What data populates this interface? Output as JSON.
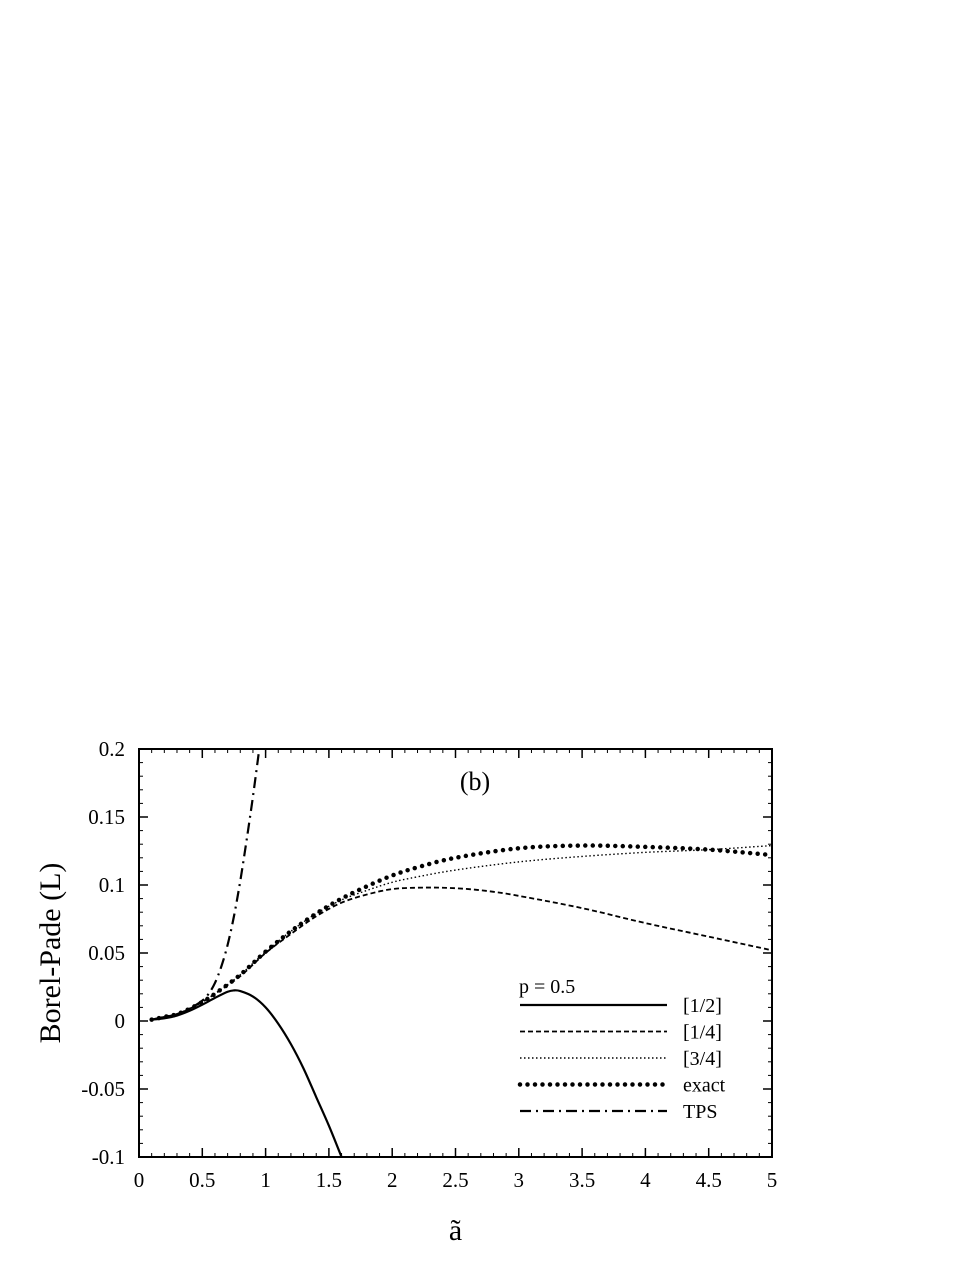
{
  "chart_data": {
    "type": "line",
    "title": "",
    "panel_label": "(b)",
    "xlabel": "ã",
    "ylabel": "Borel-Pade (L)",
    "xlim": [
      0,
      5
    ],
    "ylim": [
      -0.1,
      0.2
    ],
    "xticks": [
      "0",
      "0.5",
      "1",
      "1.5",
      "2",
      "2.5",
      "3",
      "3.5",
      "4",
      "4.5",
      "5"
    ],
    "yticks": [
      "-0.1",
      "-0.05",
      "0",
      "0.05",
      "0.1",
      "0.15",
      "0.2"
    ],
    "grid": false,
    "legend_title": "p = 0.5",
    "legend_position": "bottom-right",
    "series": [
      {
        "name": "[1/2]",
        "style": "solid",
        "x": [
          0.1,
          0.2,
          0.3,
          0.4,
          0.5,
          0.6,
          0.7,
          0.75,
          0.8,
          0.9,
          1.0,
          1.1,
          1.2,
          1.3,
          1.4,
          1.5,
          1.6
        ],
        "y": [
          0.001,
          0.002,
          0.004,
          0.0075,
          0.012,
          0.017,
          0.0215,
          0.0225,
          0.022,
          0.018,
          0.01,
          -0.002,
          -0.017,
          -0.035,
          -0.056,
          -0.077,
          -0.1
        ]
      },
      {
        "name": "[1/4]",
        "style": "dashed",
        "x": [
          0.1,
          0.2,
          0.3,
          0.4,
          0.5,
          0.6,
          0.8,
          1.0,
          1.2,
          1.4,
          1.6,
          1.8,
          2.0,
          2.2,
          2.4,
          2.6,
          2.8,
          3.0,
          3.5,
          4.0,
          4.5,
          5.0
        ],
        "y": [
          0.001,
          0.003,
          0.005,
          0.009,
          0.014,
          0.02,
          0.033,
          0.05,
          0.064,
          0.077,
          0.087,
          0.093,
          0.097,
          0.098,
          0.098,
          0.097,
          0.095,
          0.092,
          0.083,
          0.072,
          0.062,
          0.052
        ]
      },
      {
        "name": "[3/4]",
        "style": "dotted",
        "x": [
          0.1,
          0.2,
          0.3,
          0.4,
          0.5,
          0.6,
          0.8,
          1.0,
          1.2,
          1.4,
          1.6,
          1.8,
          2.0,
          2.2,
          2.5,
          3.0,
          3.5,
          4.0,
          4.5,
          5.0
        ],
        "y": [
          0.001,
          0.003,
          0.005,
          0.009,
          0.014,
          0.02,
          0.034,
          0.051,
          0.066,
          0.079,
          0.089,
          0.096,
          0.102,
          0.106,
          0.111,
          0.117,
          0.121,
          0.124,
          0.126,
          0.129
        ]
      },
      {
        "name": "exact",
        "style": "heavy-dotted",
        "x": [
          0.1,
          0.2,
          0.3,
          0.4,
          0.5,
          0.6,
          0.8,
          1.0,
          1.2,
          1.4,
          1.6,
          1.8,
          2.0,
          2.2,
          2.5,
          3.0,
          3.5,
          4.0,
          4.5,
          5.0
        ],
        "y": [
          0.001,
          0.003,
          0.005,
          0.009,
          0.014,
          0.02,
          0.034,
          0.051,
          0.066,
          0.079,
          0.09,
          0.099,
          0.107,
          0.113,
          0.12,
          0.127,
          0.129,
          0.128,
          0.126,
          0.122
        ]
      },
      {
        "name": "TPS",
        "style": "dash-dot",
        "x": [
          0.1,
          0.2,
          0.3,
          0.4,
          0.5,
          0.55,
          0.6,
          0.65,
          0.7,
          0.75,
          0.8,
          0.85,
          0.9,
          0.95
        ],
        "y": [
          0.001,
          0.003,
          0.005,
          0.009,
          0.015,
          0.02,
          0.028,
          0.04,
          0.056,
          0.077,
          0.103,
          0.133,
          0.165,
          0.2
        ]
      }
    ]
  }
}
